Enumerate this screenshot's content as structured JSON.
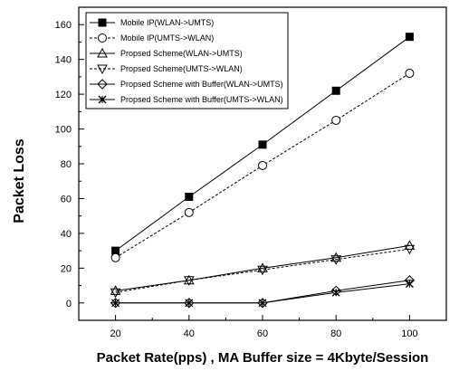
{
  "chart_data": {
    "type": "line",
    "title": "",
    "xlabel": "Packet Rate(pps) , MA Buffer size = 4Kbyte/Session",
    "ylabel": "Packet Loss",
    "x": [
      20,
      40,
      60,
      80,
      100
    ],
    "xlim": [
      10,
      110
    ],
    "ylim": [
      -10,
      170
    ],
    "xticks": [
      20,
      40,
      60,
      80,
      100
    ],
    "yticks": [
      0,
      20,
      40,
      60,
      80,
      100,
      120,
      140,
      160
    ],
    "grid": false,
    "legend_position": "top-left",
    "series": [
      {
        "name": "Mobile IP(WLAN->UMTS)",
        "values": [
          30,
          61,
          91,
          122,
          153
        ],
        "marker": "filled-square",
        "line": "solid",
        "color": "#000000"
      },
      {
        "name": "Mobile IP(UMTS->WLAN)",
        "values": [
          26,
          52,
          79,
          105,
          132
        ],
        "marker": "open-circle",
        "line": "dashed",
        "color": "#000000"
      },
      {
        "name": "Propsed Scheme(WLAN->UMTS)",
        "values": [
          7,
          13,
          20,
          26,
          33
        ],
        "marker": "open-triangle-up",
        "line": "solid",
        "color": "#000000"
      },
      {
        "name": "Propsed Scheme(UMTS->WLAN)",
        "values": [
          6,
          13,
          19,
          25,
          31
        ],
        "marker": "open-triangle-down",
        "line": "dashed",
        "color": "#000000"
      },
      {
        "name": "Propsed Scheme with Buffer(WLAN->UMTS)",
        "values": [
          0,
          0,
          0,
          7,
          13
        ],
        "marker": "open-diamond",
        "line": "solid",
        "color": "#000000"
      },
      {
        "name": "Propsed Scheme with Buffer(UMTS->WLAN)",
        "values": [
          0,
          0,
          0,
          6,
          11
        ],
        "marker": "x-cross",
        "line": "solid",
        "color": "#000000"
      }
    ]
  }
}
